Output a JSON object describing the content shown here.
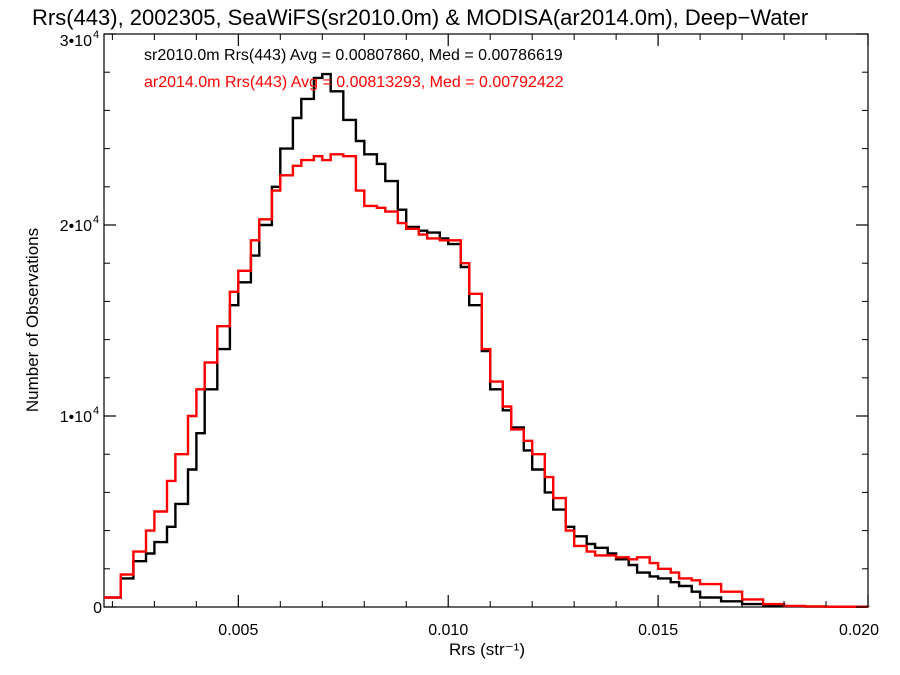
{
  "chart_data": {
    "type": "line",
    "title": "Rrs(443), 2002305, SeaWiFS(sr2010.0m) & MODISA(ar2014.0m), Deep−Water",
    "xlabel": "Rrs (str⁻¹)",
    "ylabel": "Number of Observations",
    "xlim": [
      0.0018,
      0.02
    ],
    "ylim": [
      0,
      30000
    ],
    "x_ticks": [
      {
        "value": 0.005,
        "label": "0.005"
      },
      {
        "value": 0.01,
        "label": "0.010"
      },
      {
        "value": 0.015,
        "label": "0.015"
      },
      {
        "value": 0.02,
        "label": "0.020"
      }
    ],
    "y_ticks": [
      {
        "value": 0,
        "label": "0"
      },
      {
        "value": 10000,
        "label": "1•10",
        "exp": "4"
      },
      {
        "value": 20000,
        "label": "2•10",
        "exp": "4"
      },
      {
        "value": 30000,
        "label": "3•10",
        "exp": "4"
      }
    ],
    "grid": false,
    "legend_position": "top-left",
    "series": [
      {
        "name": "sr2010.0m Rrs(443) Avg = 0.00807860, Med = 0.00786619",
        "color": "#000000",
        "step": true,
        "x": [
          0.0018,
          0.0022,
          0.0025,
          0.0028,
          0.003,
          0.0033,
          0.0035,
          0.0038,
          0.004,
          0.0042,
          0.0045,
          0.0048,
          0.005,
          0.0053,
          0.0055,
          0.0058,
          0.006,
          0.0063,
          0.0065,
          0.0068,
          0.007,
          0.0072,
          0.0075,
          0.0078,
          0.008,
          0.0083,
          0.0085,
          0.0088,
          0.009,
          0.0093,
          0.0095,
          0.0098,
          0.01,
          0.0103,
          0.0105,
          0.0108,
          0.011,
          0.0113,
          0.0115,
          0.0118,
          0.012,
          0.0123,
          0.0125,
          0.0128,
          0.013,
          0.0133,
          0.0135,
          0.0138,
          0.014,
          0.0143,
          0.0145,
          0.0148,
          0.015,
          0.0153,
          0.0155,
          0.0158,
          0.016,
          0.0165,
          0.017,
          0.0175,
          0.018,
          0.0185,
          0.019,
          0.02
        ],
        "y": [
          500,
          1500,
          2400,
          2800,
          3400,
          4200,
          5400,
          7200,
          9100,
          11400,
          13500,
          15800,
          17000,
          18400,
          20000,
          22000,
          24000,
          25600,
          26600,
          27700,
          27900,
          27000,
          25500,
          24400,
          23700,
          23200,
          22300,
          20800,
          19900,
          19700,
          19600,
          19300,
          19000,
          17800,
          15800,
          13400,
          11400,
          10300,
          9400,
          8200,
          7200,
          6000,
          5100,
          4200,
          3700,
          3300,
          3100,
          2800,
          2500,
          2200,
          1800,
          1600,
          1500,
          1300,
          1100,
          800,
          500,
          300,
          150,
          80,
          40,
          20,
          10,
          0
        ]
      },
      {
        "name": "ar2014.0m Rrs(443) Avg = 0.00813293, Med = 0.00792422",
        "color": "#ff0000",
        "step": true,
        "x": [
          0.0018,
          0.0022,
          0.0025,
          0.0028,
          0.003,
          0.0033,
          0.0035,
          0.0038,
          0.004,
          0.0042,
          0.0045,
          0.0048,
          0.005,
          0.0053,
          0.0055,
          0.0058,
          0.006,
          0.0063,
          0.0065,
          0.0068,
          0.007,
          0.0072,
          0.0075,
          0.0078,
          0.008,
          0.0083,
          0.0085,
          0.0088,
          0.009,
          0.0093,
          0.0095,
          0.0098,
          0.01,
          0.0103,
          0.0105,
          0.0108,
          0.011,
          0.0113,
          0.0115,
          0.0118,
          0.012,
          0.0123,
          0.0125,
          0.0128,
          0.013,
          0.0133,
          0.0135,
          0.0138,
          0.014,
          0.0143,
          0.0145,
          0.0148,
          0.015,
          0.0153,
          0.0155,
          0.0158,
          0.016,
          0.0165,
          0.017,
          0.0175,
          0.018,
          0.0185,
          0.019,
          0.02
        ],
        "y": [
          500,
          1700,
          2900,
          4000,
          5000,
          6600,
          8000,
          10000,
          11400,
          12800,
          14700,
          16500,
          17600,
          19200,
          20300,
          21800,
          22600,
          23100,
          23400,
          23600,
          23400,
          23700,
          23600,
          21800,
          21000,
          20900,
          20700,
          20100,
          19800,
          19500,
          19300,
          19200,
          19200,
          18000,
          16400,
          13500,
          11800,
          10500,
          9300,
          8700,
          8000,
          6800,
          5700,
          4000,
          3200,
          2900,
          2700,
          2700,
          2600,
          2500,
          2600,
          2300,
          2000,
          1800,
          1500,
          1400,
          1200,
          800,
          400,
          150,
          60,
          30,
          10,
          0
        ]
      }
    ]
  }
}
